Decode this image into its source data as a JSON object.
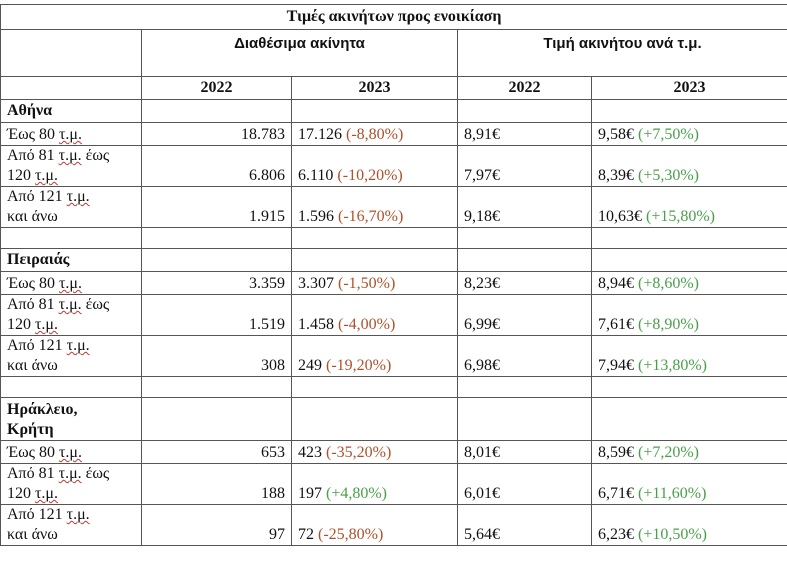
{
  "title": "Τιμές ακινήτων προς ενοικίαση",
  "headers": {
    "available": "Διαθέσιμα ακίνητα",
    "price": "Τιμή ακινήτου ανά τ.μ.",
    "year1": "2022",
    "year2": "2023"
  },
  "rows_labels": {
    "upto80_pre": "Έως 80 ",
    "upto80_u": "τ.μ.",
    "r81_line1_pre": "Από 81 ",
    "r81_line1_u": "τ.μ.",
    "r81_line1_post": " έως",
    "r81_line2_pre": "120 ",
    "r81_line2_u": "τ.μ.",
    "r121_line1_pre": "Από 121 ",
    "r121_line1_u": "τ.μ.",
    "r121_line2": "και άνω"
  },
  "cities": [
    {
      "name": "Αθήνα",
      "rows": [
        {
          "a2022": "18.783",
          "a2023": "17.126",
          "a_chg": "(-8,80%)",
          "p2022": "8,91€",
          "p2023": "9,58€",
          "p_chg": "(+7,50%)"
        },
        {
          "a2022": "6.806",
          "a2023": "6.110",
          "a_chg": "(-10,20%)",
          "p2022": "7,97€",
          "p2023": "8,39€",
          "p_chg": "(+5,30%)"
        },
        {
          "a2022": "1.915",
          "a2023": "1.596",
          "a_chg": "(-16,70%)",
          "p2022": "9,18€",
          "p2023": "10,63€",
          "p_chg": "(+15,80%)"
        }
      ]
    },
    {
      "name": "Πειραιάς",
      "rows": [
        {
          "a2022": "3.359",
          "a2023": "3.307",
          "a_chg": "(-1,50%)",
          "p2022": "8,23€",
          "p2023": "8,94€",
          "p_chg": "(+8,60%)"
        },
        {
          "a2022": "1.519",
          "a2023": "1.458",
          "a_chg": "(-4,00%)",
          "p2022": "6,99€",
          "p2023": "7,61€",
          "p_chg": "(+8,90%)"
        },
        {
          "a2022": "308",
          "a2023": "249",
          "a_chg": "(-19,20%)",
          "p2022": "6,98€",
          "p2023": "7,94€",
          "p_chg": "(+13,80%)"
        }
      ]
    },
    {
      "name_line1": "Ηράκλειο,",
      "name_line2": "Κρήτη",
      "rows": [
        {
          "a2022": "653",
          "a2023": "423",
          "a_chg": "(-35,20%)",
          "p2022": "8,01€",
          "p2023": "8,59€",
          "p_chg": "(+7,20%)"
        },
        {
          "a2022": "188",
          "a2023": "197",
          "a_chg": "(+4,80%)",
          "p2022": "6,01€",
          "p2023": "6,71€",
          "p_chg": "(+11,60%)"
        },
        {
          "a2022": "97",
          "a2023": "72",
          "a_chg": "(-25,80%)",
          "p2022": "5,64€",
          "p2023": "6,23€",
          "p_chg": "(+10,50%)"
        }
      ]
    }
  ]
}
